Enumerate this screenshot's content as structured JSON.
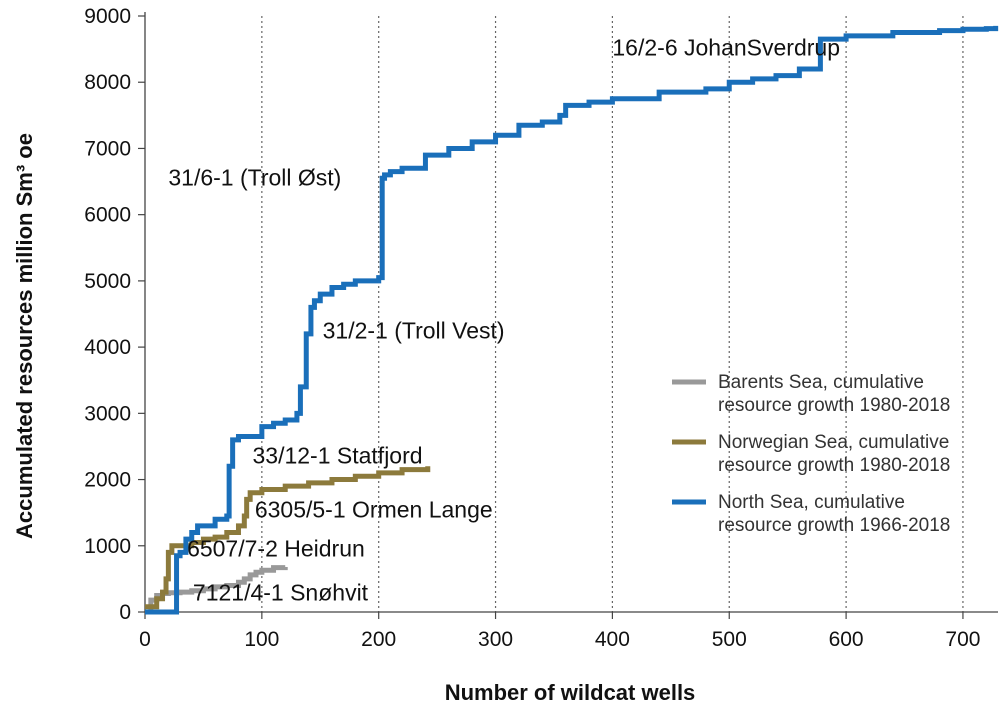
{
  "chart_data": {
    "type": "line",
    "xlabel": "Number of wildcat wells",
    "ylabel": "Accumulated resources million Sm³ oe",
    "xlim": [
      0,
      730
    ],
    "ylim": [
      0,
      9000
    ],
    "x_ticks": [
      "0",
      "100",
      "200",
      "300",
      "400",
      "500",
      "600",
      "700"
    ],
    "y_ticks": [
      "0",
      "1000",
      "2000",
      "3000",
      "4000",
      "5000",
      "6000",
      "7000",
      "8000",
      "9000"
    ],
    "grid": "vertical dotted",
    "legend_position": "right-middle",
    "series": [
      {
        "name": "Barents Sea, cumulative resource growth 1980-2018",
        "name_lines": [
          "Barents Sea, cumulative",
          "resource growth 1980-2018"
        ],
        "color": "#999999",
        "x": [
          0,
          5,
          10,
          15,
          20,
          30,
          40,
          50,
          60,
          70,
          80,
          85,
          90,
          95,
          100,
          110,
          120
        ],
        "y": [
          0,
          180,
          250,
          280,
          290,
          300,
          320,
          350,
          380,
          400,
          450,
          500,
          560,
          600,
          630,
          670,
          680
        ]
      },
      {
        "name": "Norwegian Sea, cumulative resource growth 1980-2018",
        "name_lines": [
          "Norwegian Sea, cumulative",
          "resource growth 1980-2018"
        ],
        "color": "#8c7a3c",
        "x": [
          0,
          10,
          15,
          18,
          20,
          23,
          30,
          40,
          50,
          60,
          70,
          80,
          85,
          87,
          90,
          100,
          120,
          140,
          160,
          180,
          200,
          220,
          242
        ],
        "y": [
          80,
          200,
          300,
          500,
          900,
          1000,
          1000,
          1050,
          1100,
          1130,
          1200,
          1300,
          1450,
          1700,
          1800,
          1850,
          1900,
          1950,
          2000,
          2050,
          2100,
          2150,
          2200
        ]
      },
      {
        "name": "North Sea, cumulative resource growth 1966-2018",
        "name_lines": [
          "North Sea, cumulative",
          "resource growth 1966-2018"
        ],
        "color": "#1a6fba",
        "x": [
          0,
          25,
          27,
          30,
          35,
          40,
          45,
          60,
          70,
          72,
          75,
          80,
          85,
          95,
          100,
          110,
          120,
          130,
          133,
          138,
          142,
          145,
          150,
          160,
          170,
          180,
          190,
          200,
          203,
          205,
          210,
          220,
          240,
          260,
          280,
          300,
          320,
          340,
          355,
          360,
          380,
          400,
          440,
          480,
          500,
          520,
          540,
          560,
          576,
          578,
          600,
          640,
          680,
          700,
          720,
          728
        ],
        "y": [
          0,
          0,
          850,
          900,
          1100,
          1200,
          1300,
          1400,
          1450,
          2200,
          2600,
          2650,
          2650,
          2650,
          2800,
          2850,
          2900,
          3000,
          3400,
          4200,
          4600,
          4700,
          4800,
          4900,
          4950,
          5000,
          5000,
          5050,
          6550,
          6600,
          6650,
          6700,
          6900,
          7000,
          7100,
          7200,
          7350,
          7400,
          7500,
          7650,
          7700,
          7750,
          7850,
          7900,
          8000,
          8050,
          8100,
          8200,
          8200,
          8650,
          8700,
          8750,
          8780,
          8800,
          8810,
          8850
        ]
      }
    ],
    "annotations": [
      {
        "text": "16/2-6 JohanSverdrup",
        "x": 400,
        "y": 8400
      },
      {
        "text": "31/6-1 (Troll Øst)",
        "x": 20,
        "y": 6440
      },
      {
        "text": "31/2-1 (Troll Vest)",
        "x": 152,
        "y": 4130
      },
      {
        "text": "33/12-1 Statfjord",
        "x": 92,
        "y": 2240
      },
      {
        "text": "6305/5-1 Ormen Lange",
        "x": 94,
        "y": 1430
      },
      {
        "text": "6507/7-2 Heidrun",
        "x": 36,
        "y": 840
      },
      {
        "text": "7121/4-1 Snøhvit",
        "x": 41,
        "y": 170
      }
    ]
  }
}
